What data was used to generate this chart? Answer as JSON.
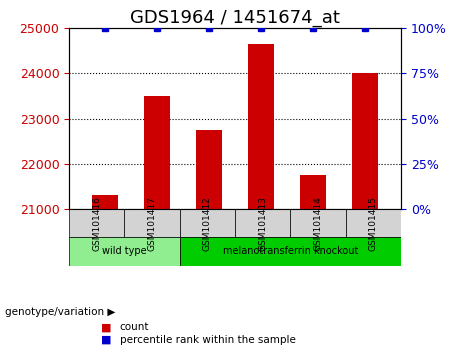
{
  "title": "GDS1964 / 1451674_at",
  "samples": [
    "GSM101416",
    "GSM101417",
    "GSM101412",
    "GSM101413",
    "GSM101414",
    "GSM101415"
  ],
  "counts": [
    21300,
    23500,
    22750,
    24650,
    21750,
    24000
  ],
  "percentile_ranks": [
    100,
    100,
    100,
    100,
    100,
    100
  ],
  "ylim_left": [
    21000,
    25000
  ],
  "yticks_left": [
    21000,
    22000,
    23000,
    24000,
    25000
  ],
  "ylim_right": [
    0,
    100
  ],
  "yticks_right": [
    0,
    25,
    50,
    75,
    100
  ],
  "bar_color": "#cc0000",
  "percentile_color": "#0000cc",
  "bar_width": 0.5,
  "groups": [
    {
      "label": "wild type",
      "indices": [
        0,
        1
      ],
      "color": "#90ee90"
    },
    {
      "label": "melanotransferrin knockout",
      "indices": [
        2,
        3,
        4,
        5
      ],
      "color": "#00cc00"
    }
  ],
  "group_label": "genotype/variation",
  "legend_items": [
    {
      "label": "count",
      "color": "#cc0000"
    },
    {
      "label": "percentile rank within the sample",
      "color": "#0000cc"
    }
  ],
  "left_tick_color": "#cc0000",
  "right_tick_color": "#0000cc",
  "xlabel_color": "#000000",
  "title_fontsize": 13,
  "tick_fontsize": 9,
  "label_fontsize": 9
}
